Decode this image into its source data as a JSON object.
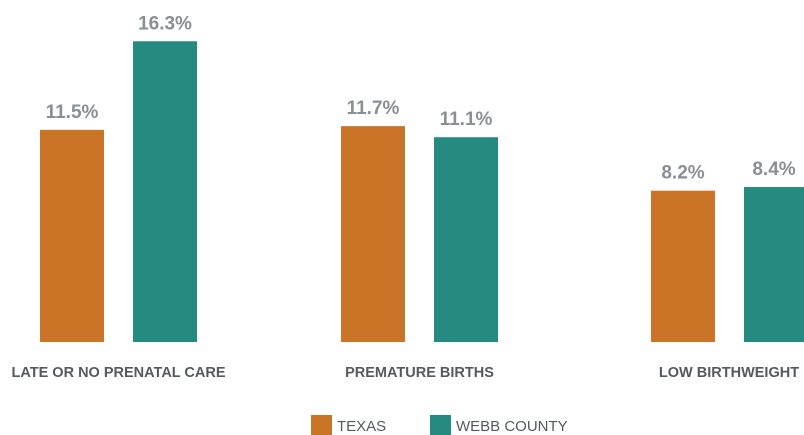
{
  "chart_data": {
    "type": "bar",
    "categories": [
      "LATE OR NO PRENATAL CARE",
      "PREMATURE BIRTHS",
      "LOW BIRTHWEIGHT"
    ],
    "series": [
      {
        "name": "TEXAS",
        "color": "#c97426",
        "values": [
          11.5,
          11.7,
          8.2
        ],
        "value_labels": [
          "11.5%",
          "11.7%",
          "8.2%"
        ]
      },
      {
        "name": "WEBB COUNTY",
        "color": "#258a80",
        "values": [
          16.3,
          11.1,
          8.4
        ],
        "value_labels": [
          "16.3%",
          "11.1%",
          "8.4%"
        ]
      }
    ],
    "legend": "bottom"
  }
}
